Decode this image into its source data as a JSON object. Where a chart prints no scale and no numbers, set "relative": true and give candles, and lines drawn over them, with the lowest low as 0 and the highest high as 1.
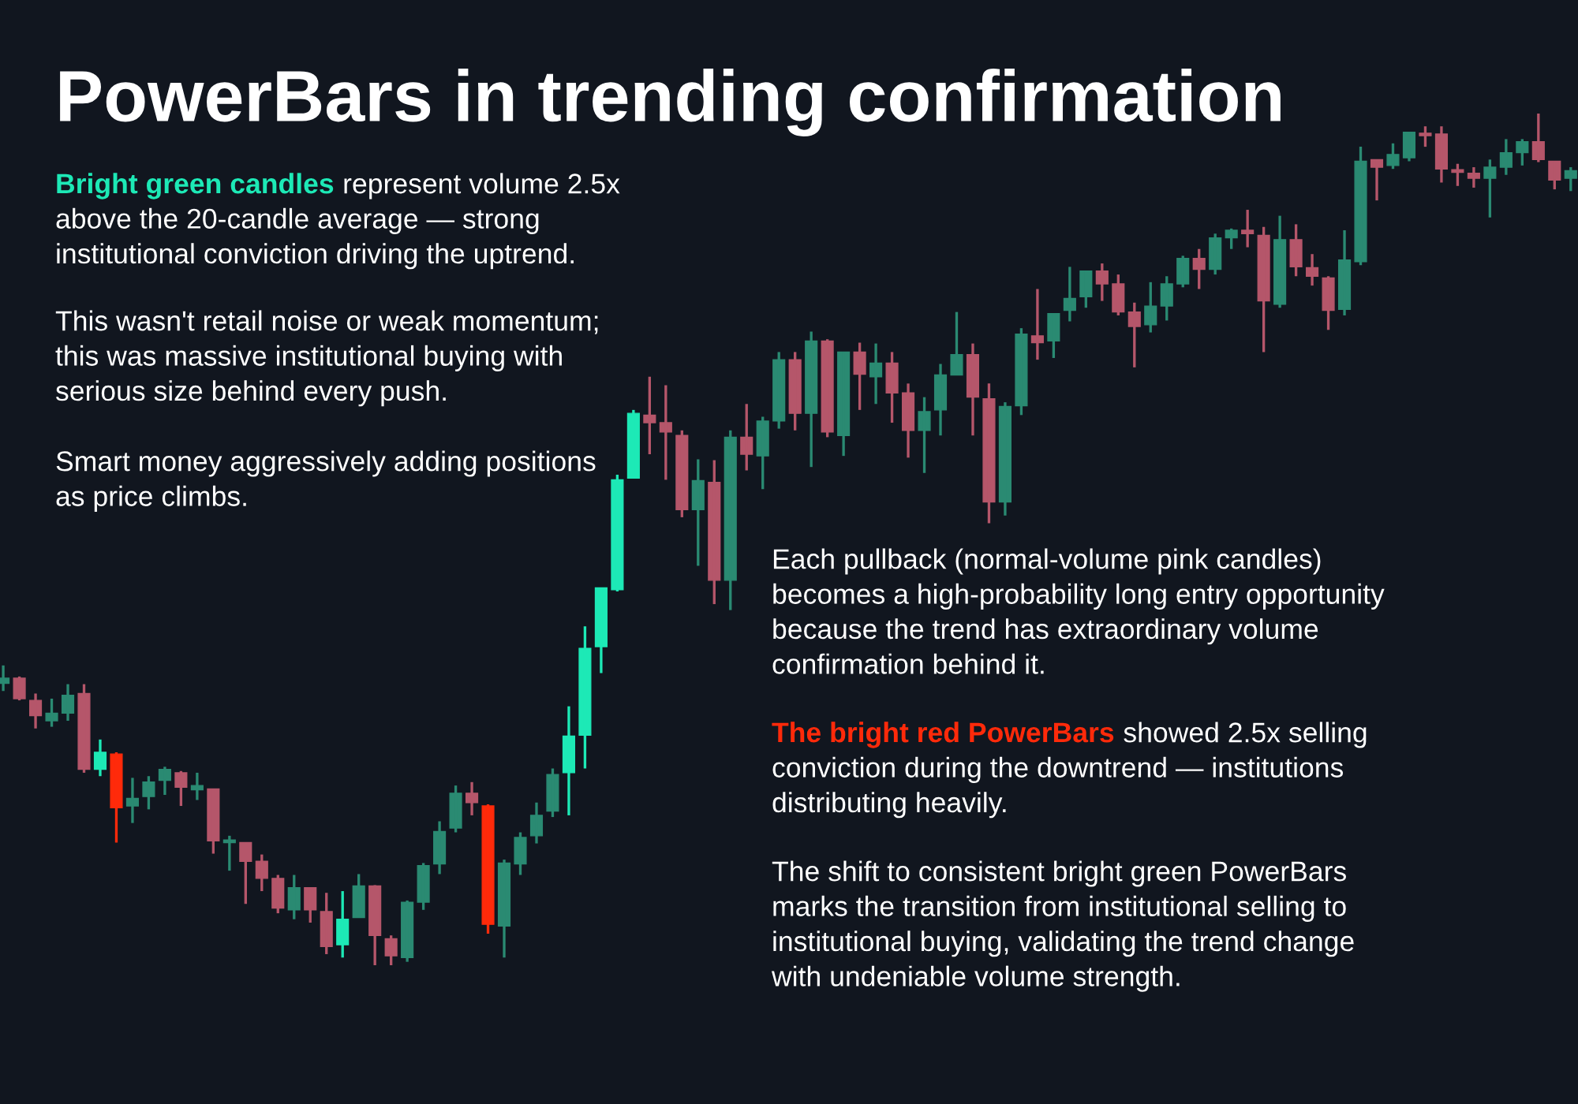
{
  "chart_data": {
    "type": "candlestick",
    "relative": true,
    "title": "PowerBars in trending confirmation",
    "annotations": [
      "Bright green candles",
      " represent volume 2.5x\nabove the 20-candle average — strong\ninstitutional conviction driving the uptrend.",
      "This wasn't retail noise or weak momentum;\nthis was massive institutional buying with\nserious size behind every push.",
      "Smart money aggressively adding positions\nas price climbs.",
      "Each pullback (normal-volume pink candles)\nbecomes a high-probability long entry opportunity\nbecause the trend has extraordinary volume\nconfirmation behind it.",
      "The bright red PowerBars",
      " showed 2.5x selling\nconviction during the downtrend — institutions\ndistributing heavily.",
      "The shift to consistent bright green PowerBars\nmarks the transition from institutional selling to\ninstitutional buying, validating the trend change\nwith undeniable volume strength."
    ],
    "categories": [
      null,
      null,
      null,
      null,
      null,
      null,
      null,
      null,
      null,
      null,
      null,
      null,
      null,
      null,
      null,
      null,
      null,
      null,
      null,
      null,
      null,
      null,
      null,
      null,
      null,
      null,
      null,
      null,
      null,
      null,
      null,
      null,
      null,
      null,
      null,
      null,
      null,
      null,
      null,
      null,
      null,
      null,
      null,
      null,
      null,
      null,
      null,
      null,
      null,
      null,
      null,
      null,
      null,
      null,
      null,
      null,
      null,
      null,
      null,
      null,
      null,
      null,
      null,
      null,
      null,
      null,
      null,
      null,
      null,
      null,
      null,
      null,
      null,
      null,
      null,
      null,
      null,
      null,
      null,
      null,
      null,
      null,
      null,
      null,
      null,
      null,
      null,
      null,
      null,
      null,
      null,
      null,
      null,
      null,
      null,
      null,
      null,
      null
    ],
    "ohlc": [
      [
        0.331,
        0.352,
        0.322,
        0.337
      ],
      [
        0.337,
        0.339,
        0.311,
        0.313
      ],
      [
        0.311,
        0.319,
        0.278,
        0.293
      ],
      [
        0.287,
        0.313,
        0.28,
        0.296
      ],
      [
        0.296,
        0.33,
        0.287,
        0.317
      ],
      [
        0.319,
        0.33,
        0.226,
        0.23
      ],
      [
        0.23,
        0.265,
        0.222,
        0.25
      ],
      [
        0.248,
        0.25,
        0.144,
        0.185
      ],
      [
        0.187,
        0.22,
        0.167,
        0.196
      ],
      [
        0.198,
        0.222,
        0.183,
        0.215
      ],
      [
        0.217,
        0.233,
        0.2,
        0.23
      ],
      [
        0.226,
        0.228,
        0.187,
        0.209
      ],
      [
        0.206,
        0.226,
        0.194,
        0.211
      ],
      [
        0.207,
        0.207,
        0.131,
        0.146
      ],
      [
        0.144,
        0.152,
        0.111,
        0.146
      ],
      [
        0.144,
        0.144,
        0.072,
        0.122
      ],
      [
        0.122,
        0.13,
        0.087,
        0.102
      ],
      [
        0.102,
        0.106,
        0.061,
        0.067
      ],
      [
        0.065,
        0.106,
        0.054,
        0.091
      ],
      [
        0.091,
        0.091,
        0.05,
        0.065
      ],
      [
        0.063,
        0.085,
        0.013,
        0.022
      ],
      [
        0.024,
        0.087,
        0.009,
        0.054
      ],
      [
        0.056,
        0.107,
        0.056,
        0.093
      ],
      [
        0.093,
        0.094,
        0.0,
        0.035
      ],
      [
        0.031,
        0.035,
        0.0,
        0.011
      ],
      [
        0.009,
        0.076,
        0.004,
        0.074
      ],
      [
        0.074,
        0.12,
        0.065,
        0.117
      ],
      [
        0.119,
        0.169,
        0.107,
        0.157
      ],
      [
        0.161,
        0.211,
        0.156,
        0.202
      ],
      [
        0.202,
        0.215,
        0.176,
        0.191
      ],
      [
        0.187,
        0.189,
        0.037,
        0.048
      ],
      [
        0.046,
        0.124,
        0.009,
        0.12
      ],
      [
        0.119,
        0.156,
        0.106,
        0.15
      ],
      [
        0.152,
        0.191,
        0.143,
        0.176
      ],
      [
        0.181,
        0.231,
        0.174,
        0.224
      ],
      [
        0.226,
        0.304,
        0.176,
        0.269
      ],
      [
        0.27,
        0.398,
        0.231,
        0.372
      ],
      [
        0.374,
        0.443,
        0.343,
        0.443
      ],
      [
        0.441,
        0.576,
        0.439,
        0.57
      ],
      [
        0.572,
        0.652,
        0.572,
        0.648
      ],
      [
        0.646,
        0.691,
        0.6,
        0.637
      ],
      [
        0.637,
        0.681,
        0.57,
        0.626
      ],
      [
        0.622,
        0.628,
        0.526,
        0.535
      ],
      [
        0.535,
        0.594,
        0.469,
        0.569
      ],
      [
        0.567,
        0.593,
        0.424,
        0.452
      ],
      [
        0.452,
        0.628,
        0.417,
        0.62
      ],
      [
        0.62,
        0.659,
        0.581,
        0.6
      ],
      [
        0.598,
        0.644,
        0.559,
        0.639
      ],
      [
        0.639,
        0.72,
        0.63,
        0.711
      ],
      [
        0.711,
        0.72,
        0.628,
        0.648
      ],
      [
        0.648,
        0.744,
        0.585,
        0.733
      ],
      [
        0.733,
        0.735,
        0.62,
        0.626
      ],
      [
        0.622,
        0.72,
        0.598,
        0.72
      ],
      [
        0.72,
        0.731,
        0.652,
        0.694
      ],
      [
        0.691,
        0.73,
        0.659,
        0.707
      ],
      [
        0.707,
        0.72,
        0.637,
        0.672
      ],
      [
        0.672,
        0.683,
        0.596,
        0.628
      ],
      [
        0.628,
        0.667,
        0.578,
        0.65
      ],
      [
        0.652,
        0.706,
        0.622,
        0.693
      ],
      [
        0.693,
        0.767,
        0.693,
        0.717
      ],
      [
        0.717,
        0.73,
        0.622,
        0.667
      ],
      [
        0.665,
        0.683,
        0.519,
        0.544
      ],
      [
        0.544,
        0.661,
        0.528,
        0.656
      ],
      [
        0.657,
        0.748,
        0.646,
        0.741
      ],
      [
        0.739,
        0.794,
        0.711,
        0.731
      ],
      [
        0.733,
        0.765,
        0.713,
        0.765
      ],
      [
        0.769,
        0.82,
        0.756,
        0.783
      ],
      [
        0.785,
        0.815,
        0.772,
        0.815
      ],
      [
        0.815,
        0.824,
        0.78,
        0.8
      ],
      [
        0.8,
        0.811,
        0.763,
        0.767
      ],
      [
        0.767,
        0.778,
        0.702,
        0.75
      ],
      [
        0.752,
        0.802,
        0.743,
        0.774
      ],
      [
        0.774,
        0.809,
        0.757,
        0.8
      ],
      [
        0.8,
        0.833,
        0.796,
        0.83
      ],
      [
        0.83,
        0.841,
        0.794,
        0.817
      ],
      [
        0.817,
        0.859,
        0.811,
        0.854
      ],
      [
        0.854,
        0.865,
        0.841,
        0.863
      ],
      [
        0.863,
        0.887,
        0.843,
        0.859
      ],
      [
        0.857,
        0.867,
        0.72,
        0.78
      ],
      [
        0.776,
        0.88,
        0.772,
        0.852
      ],
      [
        0.852,
        0.87,
        0.809,
        0.82
      ],
      [
        0.819,
        0.835,
        0.798,
        0.809
      ],
      [
        0.807,
        0.809,
        0.746,
        0.769
      ],
      [
        0.77,
        0.863,
        0.763,
        0.828
      ],
      [
        0.826,
        0.961,
        0.822,
        0.944
      ],
      [
        0.946,
        0.946,
        0.898,
        0.937
      ],
      [
        0.939,
        0.965,
        0.935,
        0.952
      ],
      [
        0.948,
        0.978,
        0.944,
        0.978
      ],
      [
        0.976,
        0.985,
        0.961,
        0.974
      ],
      [
        0.976,
        0.985,
        0.919,
        0.935
      ],
      [
        0.933,
        0.941,
        0.915,
        0.931
      ],
      [
        0.93,
        0.937,
        0.913,
        0.924
      ],
      [
        0.924,
        0.946,
        0.878,
        0.937
      ],
      [
        0.937,
        0.97,
        0.928,
        0.954
      ],
      [
        0.954,
        0.97,
        0.939,
        0.967
      ],
      [
        0.967,
        1.0,
        0.943,
        0.946
      ],
      [
        0.944,
        0.944,
        0.911,
        0.922
      ],
      [
        0.924,
        0.937,
        0.909,
        0.933
      ]
    ],
    "colors": [
      "#2a8a72",
      "#b5566a",
      "#b5566a",
      "#2a8a72",
      "#2a8a72",
      "#b5566a",
      "#1de9b6",
      "#ff2a0a",
      "#2a8a72",
      "#2a8a72",
      "#2a8a72",
      "#b5566a",
      "#2a8a72",
      "#b5566a",
      "#2a8a72",
      "#b5566a",
      "#b5566a",
      "#b5566a",
      "#2a8a72",
      "#b5566a",
      "#b5566a",
      "#1de9b6",
      "#2a8a72",
      "#b5566a",
      "#b5566a",
      "#2a8a72",
      "#2a8a72",
      "#2a8a72",
      "#2a8a72",
      "#b5566a",
      "#ff2a0a",
      "#2a8a72",
      "#2a8a72",
      "#2a8a72",
      "#2a8a72",
      "#1de9b6",
      "#1de9b6",
      "#1de9b6",
      "#1de9b6",
      "#1de9b6",
      "#b5566a",
      "#b5566a",
      "#b5566a",
      "#2a8a72",
      "#b5566a",
      "#2a8a72",
      "#b5566a",
      "#2a8a72",
      "#2a8a72",
      "#b5566a",
      "#2a8a72",
      "#b5566a",
      "#2a8a72",
      "#b5566a",
      "#2a8a72",
      "#b5566a",
      "#b5566a",
      "#2a8a72",
      "#2a8a72",
      "#2a8a72",
      "#b5566a",
      "#b5566a",
      "#2a8a72",
      "#2a8a72",
      "#b5566a",
      "#2a8a72",
      "#2a8a72",
      "#2a8a72",
      "#b5566a",
      "#b5566a",
      "#b5566a",
      "#2a8a72",
      "#2a8a72",
      "#2a8a72",
      "#b5566a",
      "#2a8a72",
      "#2a8a72",
      "#b5566a",
      "#b5566a",
      "#2a8a72",
      "#b5566a",
      "#b5566a",
      "#b5566a",
      "#2a8a72",
      "#2a8a72",
      "#b5566a",
      "#2a8a72",
      "#2a8a72",
      "#b5566a",
      "#b5566a",
      "#b5566a",
      "#b5566a",
      "#2a8a72",
      "#2a8a72",
      "#2a8a72",
      "#b5566a",
      "#b5566a",
      "#2a8a72"
    ]
  }
}
